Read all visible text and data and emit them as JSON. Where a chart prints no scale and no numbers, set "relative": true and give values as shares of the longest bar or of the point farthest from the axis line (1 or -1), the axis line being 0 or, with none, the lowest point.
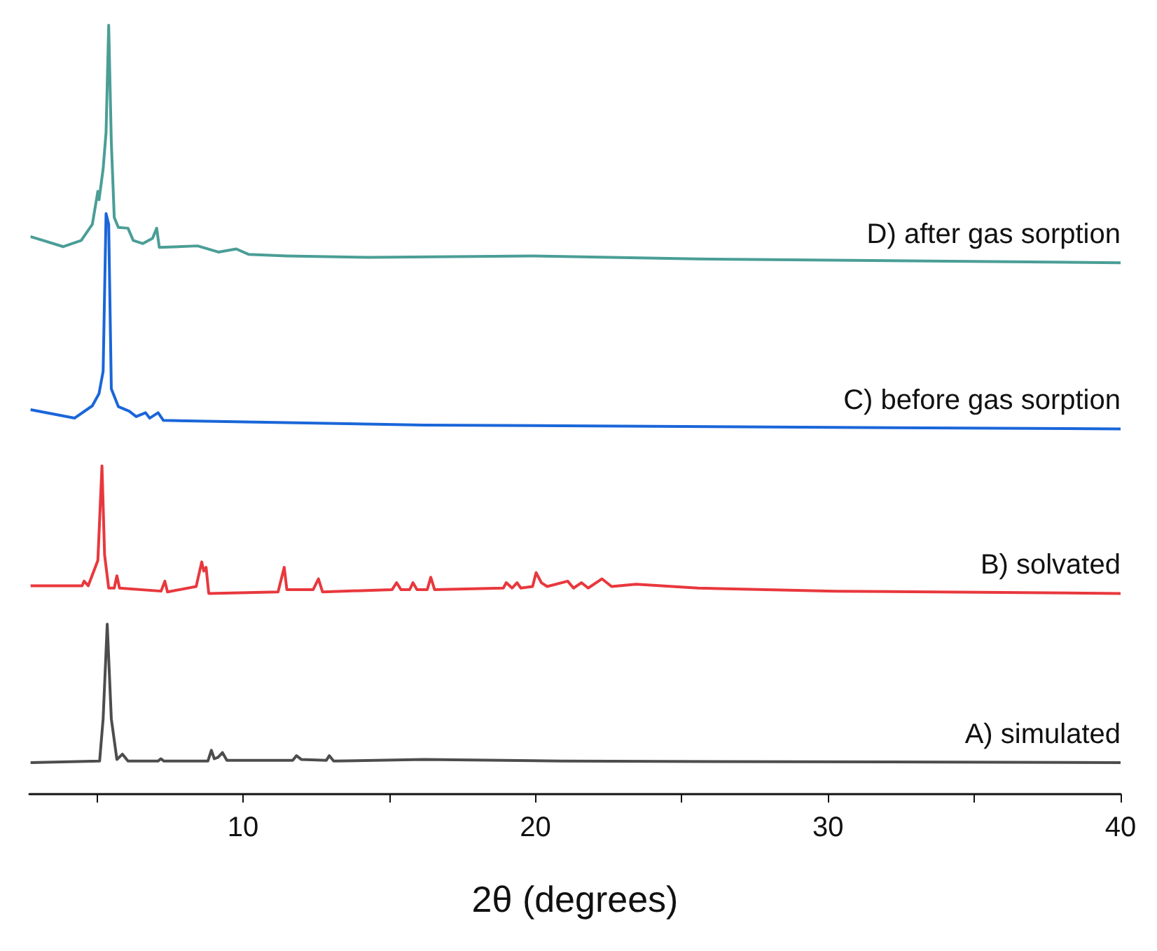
{
  "chart_data": {
    "type": "line",
    "relative": true,
    "xlabel": "2θ (degrees)",
    "xlim": [
      2.7,
      40
    ],
    "xticks": [
      {
        "value": 5,
        "label": null
      },
      10,
      {
        "value": 15,
        "label": null
      },
      20,
      {
        "value": 25,
        "label": null
      },
      30,
      {
        "value": 35,
        "label": null
      },
      40
    ],
    "grid": false,
    "legend": false,
    "marker": "none",
    "line_style": "solid",
    "series": [
      {
        "name": "A) simulated",
        "color": "#4d4d4d",
        "x": [
          2.74,
          5.1,
          5.22,
          5.36,
          5.5,
          5.69,
          5.88,
          6.07,
          7.1,
          7.19,
          7.3,
          8.8,
          8.92,
          9.02,
          9.15,
          9.3,
          9.45,
          11.7,
          11.83,
          12.0,
          12.85,
          12.95,
          13.1,
          16.18,
          20.87,
          40
        ],
        "values": [
          0.041,
          0.043,
          0.098,
          0.221,
          0.098,
          0.045,
          0.052,
          0.043,
          0.043,
          0.046,
          0.043,
          0.043,
          0.057,
          0.046,
          0.048,
          0.054,
          0.044,
          0.044,
          0.05,
          0.045,
          0.044,
          0.05,
          0.043,
          0.045,
          0.043,
          0.041
        ]
      },
      {
        "name": "B) solvated",
        "color": "#e8383d",
        "x": [
          2.74,
          4.5,
          4.57,
          4.71,
          5.04,
          5.18,
          5.27,
          5.41,
          5.6,
          5.69,
          5.78,
          7.2,
          7.33,
          7.42,
          8.4,
          8.59,
          8.66,
          8.74,
          8.83,
          11.2,
          11.41,
          11.5,
          12.4,
          12.58,
          12.72,
          15.1,
          15.25,
          15.4,
          15.7,
          15.81,
          15.95,
          16.3,
          16.42,
          16.55,
          18.9,
          19.0,
          19.2,
          19.37,
          19.5,
          19.9,
          20.02,
          20.2,
          20.4,
          21.1,
          21.3,
          21.57,
          21.8,
          22.27,
          22.6,
          23.44,
          25.55,
          30.23,
          40
        ],
        "values": [
          0.271,
          0.271,
          0.277,
          0.271,
          0.304,
          0.427,
          0.311,
          0.268,
          0.268,
          0.284,
          0.268,
          0.264,
          0.277,
          0.263,
          0.27,
          0.302,
          0.29,
          0.295,
          0.261,
          0.263,
          0.295,
          0.266,
          0.266,
          0.28,
          0.263,
          0.266,
          0.275,
          0.266,
          0.266,
          0.275,
          0.266,
          0.266,
          0.282,
          0.266,
          0.268,
          0.275,
          0.268,
          0.275,
          0.268,
          0.27,
          0.288,
          0.275,
          0.27,
          0.277,
          0.268,
          0.275,
          0.268,
          0.28,
          0.27,
          0.273,
          0.268,
          0.264,
          0.261
        ]
      },
      {
        "name": "C) before gas sorption",
        "color": "#1a66d9",
        "x": [
          2.74,
          4.24,
          4.85,
          5.08,
          5.22,
          5.32,
          5.41,
          5.5,
          5.74,
          6.11,
          6.35,
          6.67,
          6.81,
          7.1,
          7.28,
          10.09,
          16.18,
          40
        ],
        "values": [
          0.5,
          0.489,
          0.505,
          0.521,
          0.55,
          0.755,
          0.741,
          0.527,
          0.504,
          0.498,
          0.491,
          0.496,
          0.489,
          0.496,
          0.486,
          0.484,
          0.48,
          0.475
        ]
      },
      {
        "name": "D) after gas sorption",
        "color": "#4a9e96",
        "x": [
          2.74,
          3.86,
          4.47,
          4.85,
          5.04,
          5.08,
          5.22,
          5.32,
          5.41,
          5.5,
          5.6,
          5.74,
          6.07,
          6.25,
          6.58,
          6.91,
          7.05,
          7.14,
          8.45,
          9.16,
          9.77,
          10.19,
          11.5,
          14.31,
          19.93,
          25.55,
          40
        ],
        "values": [
          0.725,
          0.712,
          0.72,
          0.741,
          0.784,
          0.773,
          0.813,
          0.861,
          1,
          0.848,
          0.75,
          0.737,
          0.736,
          0.72,
          0.716,
          0.723,
          0.736,
          0.711,
          0.713,
          0.705,
          0.709,
          0.702,
          0.7,
          0.698,
          0.7,
          0.696,
          0.691
        ]
      }
    ]
  }
}
